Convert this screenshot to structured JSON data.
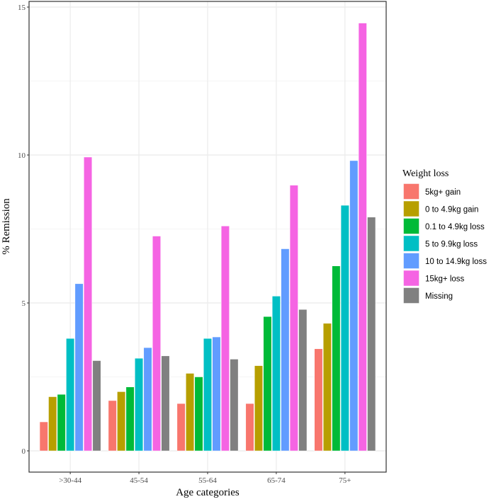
{
  "chart_data": {
    "type": "bar",
    "title": "",
    "xlabel": "Age categories",
    "ylabel": "% Remission",
    "ylim": [
      0,
      15
    ],
    "yticks": [
      0,
      5,
      10,
      15
    ],
    "grid": true,
    "legend_title": "Weight loss",
    "legend_position": "right",
    "categories": [
      ">30-44",
      "45-54",
      "55-64",
      "65-74",
      "75+"
    ],
    "series": [
      {
        "name": "5kg+ gain",
        "color": "#F8766D",
        "values": [
          0.98,
          1.7,
          1.6,
          1.6,
          3.45
        ]
      },
      {
        "name": "0 to 4.9kg gain",
        "color": "#B79F00",
        "values": [
          1.83,
          2.0,
          2.62,
          2.88,
          4.31
        ]
      },
      {
        "name": "0.1 to 4.9kg loss",
        "color": "#00BA38",
        "values": [
          1.91,
          2.16,
          2.5,
          4.54,
          6.25
        ]
      },
      {
        "name": "5 to 9.9kg loss",
        "color": "#00BFC4",
        "values": [
          3.8,
          3.13,
          3.8,
          5.23,
          8.3
        ]
      },
      {
        "name": "10 to 14.9kg loss",
        "color": "#619CFF",
        "values": [
          5.65,
          3.49,
          3.85,
          6.83,
          9.81
        ]
      },
      {
        "name": "15kg+ loss",
        "color": "#F564E3",
        "values": [
          9.93,
          7.26,
          7.6,
          8.98,
          14.46
        ]
      },
      {
        "name": "Missing",
        "color": "#808080",
        "values": [
          3.05,
          3.21,
          3.1,
          4.78,
          7.9
        ]
      }
    ]
  }
}
